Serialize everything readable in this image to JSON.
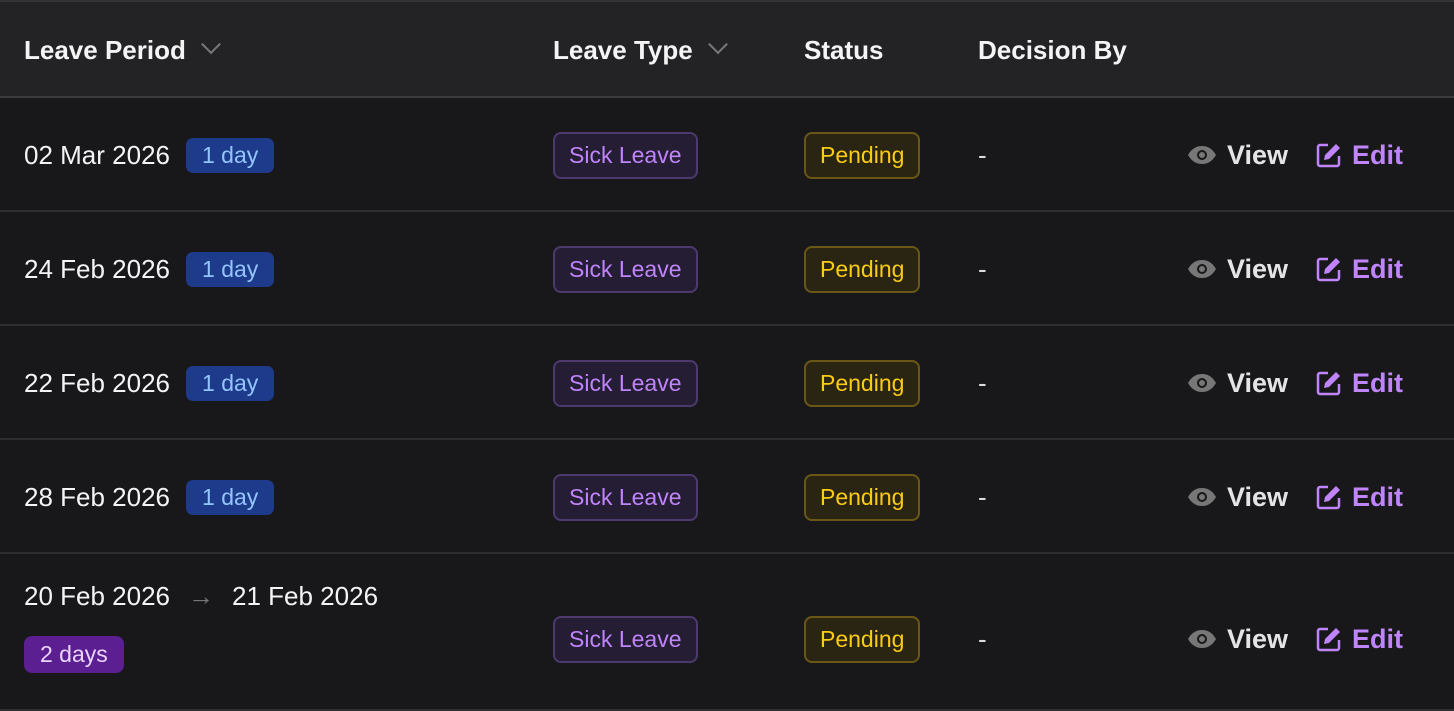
{
  "headers": {
    "leave_period": "Leave Period",
    "leave_type": "Leave Type",
    "status": "Status",
    "decision_by": "Decision By"
  },
  "rows": [
    {
      "start": "02 Mar 2026",
      "duration": "1 day",
      "type": "Sick Leave",
      "status": "Pending",
      "decision_by": "-",
      "view": "View",
      "edit": "Edit"
    },
    {
      "start": "24 Feb 2026",
      "duration": "1 day",
      "type": "Sick Leave",
      "status": "Pending",
      "decision_by": "-",
      "view": "View",
      "edit": "Edit"
    },
    {
      "start": "22 Feb 2026",
      "duration": "1 day",
      "type": "Sick Leave",
      "status": "Pending",
      "decision_by": "-",
      "view": "View",
      "edit": "Edit"
    },
    {
      "start": "28 Feb 2026",
      "duration": "1 day",
      "type": "Sick Leave",
      "status": "Pending",
      "decision_by": "-",
      "view": "View",
      "edit": "Edit"
    },
    {
      "start": "20 Feb 2026",
      "end": "21 Feb 2026",
      "arrow": "→",
      "duration": "2 days",
      "type": "Sick Leave",
      "status": "Pending",
      "decision_by": "-",
      "view": "View",
      "edit": "Edit"
    }
  ],
  "colors": {
    "day_badge": "#1e3a8a",
    "multi_day_badge": "#5b1f91",
    "leave_type": "#c084fc",
    "pending": "#facc15"
  }
}
